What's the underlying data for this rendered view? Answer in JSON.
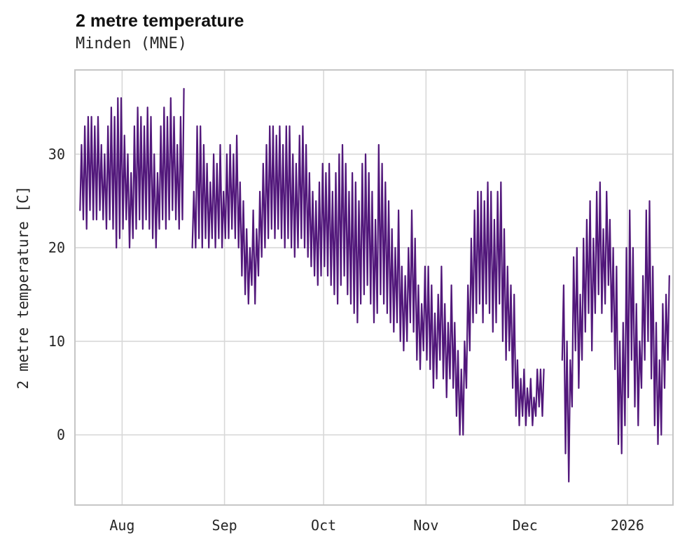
{
  "chart_data": {
    "type": "line",
    "title": "2 metre temperature",
    "subtitle": "Minden (MNE)",
    "ylabel": "2 metre temperature [C]",
    "xlabel": "",
    "legend": null,
    "grid": true,
    "ylim": [
      -7.5,
      39
    ],
    "xlim": [
      -1.3,
      179.8
    ],
    "y_ticks": [
      0,
      10,
      20,
      30
    ],
    "x_ticks": [
      {
        "label": "Aug",
        "day": 13
      },
      {
        "label": "Sep",
        "day": 44
      },
      {
        "label": "Oct",
        "day": 74
      },
      {
        "label": "Nov",
        "day": 105
      },
      {
        "label": "Dec",
        "day": 135
      },
      {
        "label": "2026",
        "day": 166
      }
    ],
    "colors": {
      "line": "#52187b",
      "grid": "#d8d8d8",
      "frame": "#c6c6c6",
      "tick_text": "#262626"
    },
    "series_name": "2 metre temperature",
    "x_unit": "day-index from series start (late Jul 2025)",
    "daily_minmax": [
      [
        24,
        31
      ],
      [
        23,
        33
      ],
      [
        22,
        34
      ],
      [
        24,
        34
      ],
      [
        23,
        33
      ],
      [
        23,
        34
      ],
      [
        24,
        31
      ],
      [
        23,
        30
      ],
      [
        22,
        33
      ],
      [
        23,
        35
      ],
      [
        22,
        34
      ],
      [
        20,
        36
      ],
      [
        21,
        36
      ],
      [
        22,
        32
      ],
      [
        23,
        30
      ],
      [
        20,
        28
      ],
      [
        21,
        33
      ],
      [
        22,
        35
      ],
      [
        23,
        34
      ],
      [
        22,
        33
      ],
      [
        23,
        35
      ],
      [
        22,
        34
      ],
      [
        21,
        30
      ],
      [
        20,
        28
      ],
      [
        22,
        33
      ],
      [
        23,
        35
      ],
      [
        22,
        34
      ],
      [
        23,
        36
      ],
      [
        24,
        34
      ],
      [
        23,
        31
      ],
      [
        22,
        34
      ],
      [
        23,
        37
      ],
      null,
      null,
      [
        20,
        26
      ],
      [
        20,
        33
      ],
      [
        21,
        33
      ],
      [
        20,
        31
      ],
      [
        21,
        29
      ],
      [
        20,
        27
      ],
      [
        21,
        30
      ],
      [
        20,
        29
      ],
      [
        21,
        31
      ],
      [
        20,
        26
      ],
      [
        21,
        30
      ],
      [
        21,
        31
      ],
      [
        22,
        30
      ],
      [
        21,
        32
      ],
      [
        20,
        27
      ],
      [
        17,
        25
      ],
      [
        15,
        22
      ],
      [
        14,
        20
      ],
      [
        16,
        24
      ],
      [
        14,
        22
      ],
      [
        17,
        26
      ],
      [
        19,
        29
      ],
      [
        20,
        31
      ],
      [
        21,
        33
      ],
      [
        22,
        33
      ],
      [
        21,
        32
      ],
      [
        22,
        33
      ],
      [
        21,
        31
      ],
      [
        20,
        33
      ],
      [
        21,
        33
      ],
      [
        20,
        30
      ],
      [
        19,
        29
      ],
      [
        20,
        32
      ],
      [
        21,
        33
      ],
      [
        20,
        31
      ],
      [
        19,
        28
      ],
      [
        18,
        26
      ],
      [
        17,
        25
      ],
      [
        16,
        27
      ],
      [
        17,
        29
      ],
      [
        18,
        28
      ],
      [
        17,
        29
      ],
      [
        16,
        26
      ],
      [
        15,
        28
      ],
      [
        14,
        30
      ],
      [
        16,
        31
      ],
      [
        17,
        29
      ],
      [
        15,
        26
      ],
      [
        14,
        28
      ],
      [
        13,
        27
      ],
      [
        12,
        25
      ],
      [
        14,
        29
      ],
      [
        15,
        30
      ],
      [
        16,
        28
      ],
      [
        14,
        26
      ],
      [
        12,
        23
      ],
      [
        13,
        31
      ],
      [
        15,
        29
      ],
      [
        14,
        27
      ],
      [
        13,
        25
      ],
      [
        12,
        22
      ],
      [
        11,
        20
      ],
      [
        12,
        24
      ],
      [
        10,
        18
      ],
      [
        9,
        17
      ],
      [
        10,
        20
      ],
      [
        12,
        24
      ],
      [
        11,
        21
      ],
      [
        8,
        16
      ],
      [
        7,
        14
      ],
      [
        9,
        18
      ],
      [
        8,
        18
      ],
      [
        7,
        16
      ],
      [
        5,
        13
      ],
      [
        6,
        15
      ],
      [
        8,
        18
      ],
      [
        6,
        14
      ],
      [
        4,
        12
      ],
      [
        6,
        16
      ],
      [
        5,
        12
      ],
      [
        2,
        9
      ],
      [
        0,
        7
      ],
      [
        0,
        10
      ],
      [
        5,
        16
      ],
      [
        9,
        21
      ],
      [
        12,
        24
      ],
      [
        13,
        26
      ],
      [
        14,
        26
      ],
      [
        12,
        25
      ],
      [
        14,
        27
      ],
      [
        13,
        26
      ],
      [
        11,
        23
      ],
      [
        12,
        26
      ],
      [
        14,
        27
      ],
      [
        10,
        22
      ],
      [
        8,
        18
      ],
      [
        9,
        16
      ],
      [
        5,
        15
      ],
      [
        2,
        8
      ],
      [
        1,
        6
      ],
      [
        2,
        7
      ],
      [
        1,
        5
      ],
      [
        2,
        6
      ],
      [
        1,
        4
      ],
      [
        2,
        7
      ],
      [
        3,
        7
      ],
      [
        2,
        7
      ],
      null,
      null,
      null,
      null,
      null,
      [
        8,
        16
      ],
      [
        -2,
        10
      ],
      [
        -5,
        8
      ],
      [
        3,
        19
      ],
      [
        9,
        20
      ],
      [
        5,
        15
      ],
      [
        8,
        21
      ],
      [
        11,
        23
      ],
      [
        13,
        25
      ],
      [
        9,
        21
      ],
      [
        13,
        26
      ],
      [
        15,
        27
      ],
      [
        13,
        22
      ],
      [
        14,
        26
      ],
      [
        16,
        23
      ],
      [
        11,
        20
      ],
      [
        7,
        18
      ],
      [
        -1,
        10
      ],
      [
        -2,
        12
      ],
      [
        1,
        20
      ],
      [
        4,
        24
      ],
      [
        8,
        20
      ],
      [
        3,
        14
      ],
      [
        1,
        10
      ],
      [
        5,
        17
      ],
      [
        8,
        24
      ],
      [
        10,
        25
      ],
      [
        6,
        18
      ],
      [
        1,
        12
      ],
      [
        -1,
        8
      ],
      [
        0,
        14
      ],
      [
        5,
        15
      ],
      [
        8,
        17
      ]
    ]
  }
}
